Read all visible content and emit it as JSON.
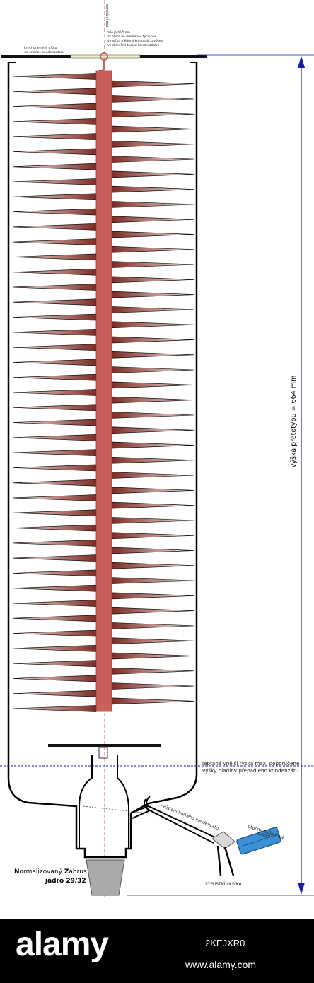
{
  "labels": {
    "central_axis": "centrální osa",
    "cover_line1": "krycí skleněné víčko",
    "cover_line2": "skl.trubice kondenzátoru",
    "hook_line1": "zde je háčkem",
    "hook_line2": "za otvor ve skleněnou tyčinkou",
    "hook_line3": "ve víčku měděný kompozit zavěšen",
    "hook_line4": "ve skleněné trubici kondenzátoru",
    "height": "výška prototypu = 664 mm",
    "level_line1": "leptaná vnější ryska max. doporučené",
    "level_line2": "výšky hladiny přepadlého kondenzátu",
    "outlet_hot": "vyústění horkého kondenzátu",
    "valve_line1": "otočný teflonový",
    "valve_line2": "ventil",
    "olive": "VÝPUSTNÍ OLIVKA",
    "joint_line1_bold1": "N",
    "joint_line1_rest1": "ormalizovaný ",
    "joint_line1_bold2": "Z",
    "joint_line1_rest2": "ábrus",
    "joint_line2": "jádro 29/32"
  },
  "footer": {
    "logo": "alamy",
    "image_id": "2KEJXR0",
    "site": "www.alamy.com"
  },
  "colors": {
    "copper_rod": "#c9605c",
    "fin_dark": "#7a2c24",
    "fin_light": "#fde8e6",
    "dimension": "#1a1aaa",
    "valve": "#3b8fd4",
    "joint": "#aaaaaa",
    "cap": "#f2f0c4"
  },
  "fin_pairs": 43
}
